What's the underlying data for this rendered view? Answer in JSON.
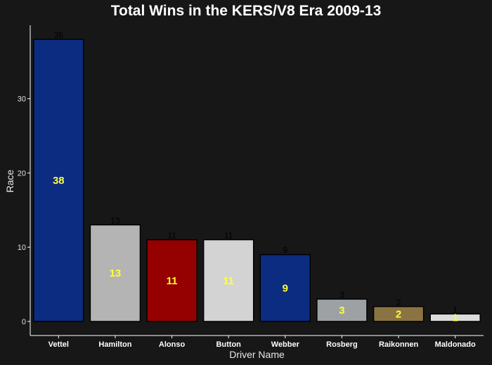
{
  "chart_data": {
    "type": "bar",
    "title": "Total Wins in the KERS/V8 Era 2009-13",
    "xlabel": "Driver Name",
    "ylabel": "Race",
    "categories": [
      "Vettel",
      "Hamilton",
      "Alonso",
      "Button",
      "Webber",
      "Rosberg",
      "Raikonnen",
      "Maldonado"
    ],
    "values": [
      38,
      13,
      11,
      11,
      9,
      3,
      2,
      1
    ],
    "bar_colors": [
      "#0b2c80",
      "#b4b4b4",
      "#950000",
      "#d3d3d3",
      "#0b2c80",
      "#9ea1a4",
      "#8a7443",
      "#dcdcdc"
    ],
    "yticks": [
      0,
      10,
      20,
      30
    ],
    "ylim": [
      -1.9,
      39.9
    ],
    "grid": false,
    "background": "#171717",
    "value_label_color": "#ffff33"
  }
}
